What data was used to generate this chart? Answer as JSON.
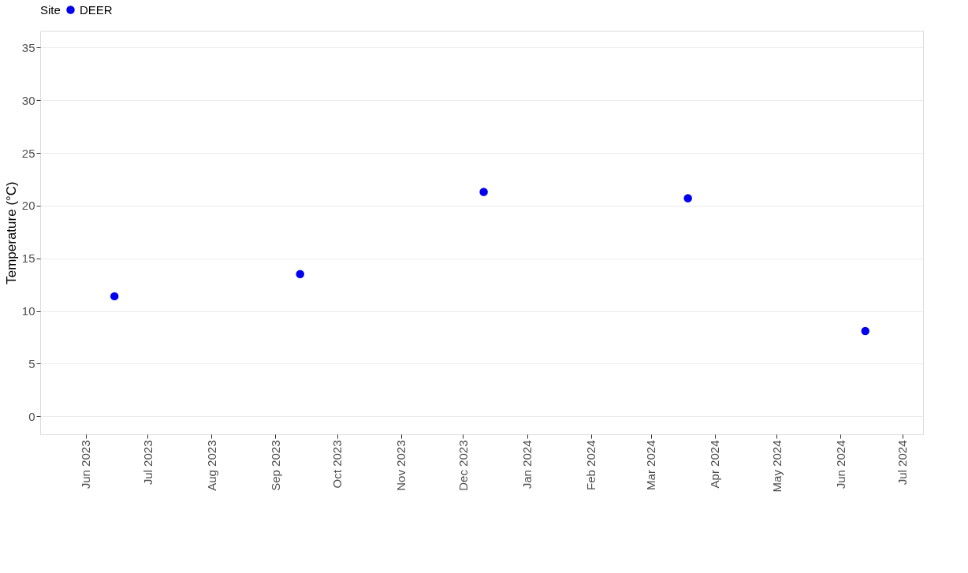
{
  "chart_data": {
    "type": "scatter",
    "ylabel": "Temperature (°C)",
    "legend_title": "Site",
    "legend": "top",
    "grid": "y",
    "marker": "circle",
    "x": [
      "2023-06-15",
      "2023-09-13",
      "2023-12-11",
      "2024-03-19",
      "2024-06-13"
    ],
    "series": [
      {
        "name": "DEER",
        "color": "#0000ee",
        "values": [
          11.4,
          13.5,
          21.3,
          20.7,
          8.1
        ]
      }
    ],
    "xlim": [
      "2023-05-10",
      "2024-07-11"
    ],
    "xticks": [
      {
        "value": "2023-06-01",
        "label": "Jun 2023"
      },
      {
        "value": "2023-07-01",
        "label": "Jul 2023"
      },
      {
        "value": "2023-08-01",
        "label": "Aug 2023"
      },
      {
        "value": "2023-09-01",
        "label": "Sep 2023"
      },
      {
        "value": "2023-10-01",
        "label": "Oct 2023"
      },
      {
        "value": "2023-11-01",
        "label": "Nov 2023"
      },
      {
        "value": "2023-12-01",
        "label": "Dec 2023"
      },
      {
        "value": "2024-01-01",
        "label": "Jan 2024"
      },
      {
        "value": "2024-02-01",
        "label": "Feb 2024"
      },
      {
        "value": "2024-03-01",
        "label": "Mar 2024"
      },
      {
        "value": "2024-04-01",
        "label": "Apr 2024"
      },
      {
        "value": "2024-05-01",
        "label": "May 2024"
      },
      {
        "value": "2024-06-01",
        "label": "Jun 2024"
      },
      {
        "value": "2024-07-01",
        "label": "Jul 2024"
      }
    ],
    "ylim": [
      -1.7,
      36.6
    ],
    "yticks": [
      0,
      5,
      10,
      15,
      20,
      25,
      30,
      35
    ]
  }
}
